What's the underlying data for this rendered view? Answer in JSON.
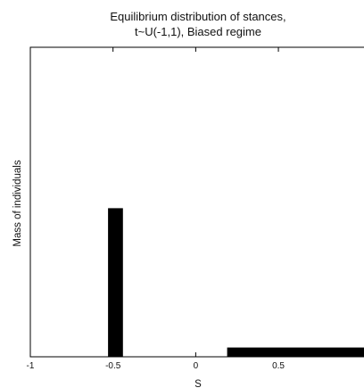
{
  "chart_data": {
    "type": "bar",
    "title_lines": [
      "Equilibrium distribution of stances,",
      "t~U(-1,1), Biased regime"
    ],
    "xlabel": "S",
    "ylabel": "Mass of individuals",
    "xlim": [
      -1,
      1.05
    ],
    "ylim": [
      0,
      1
    ],
    "x_ticks": [
      {
        "value": -1,
        "label": "-1"
      },
      {
        "value": -0.5,
        "label": "-0.5"
      },
      {
        "value": 0,
        "label": "0"
      },
      {
        "value": 0.5,
        "label": "0.5"
      }
    ],
    "bars": [
      {
        "x_start": -0.53,
        "x_end": -0.44,
        "value": 0.48
      },
      {
        "x_start": 0.19,
        "x_end": 1.05,
        "value": 0.03
      }
    ],
    "y_ticks_shown": false,
    "grid": false,
    "colors": {
      "bar": "#000000",
      "axis": "#000000",
      "background": "#ffffff"
    }
  }
}
